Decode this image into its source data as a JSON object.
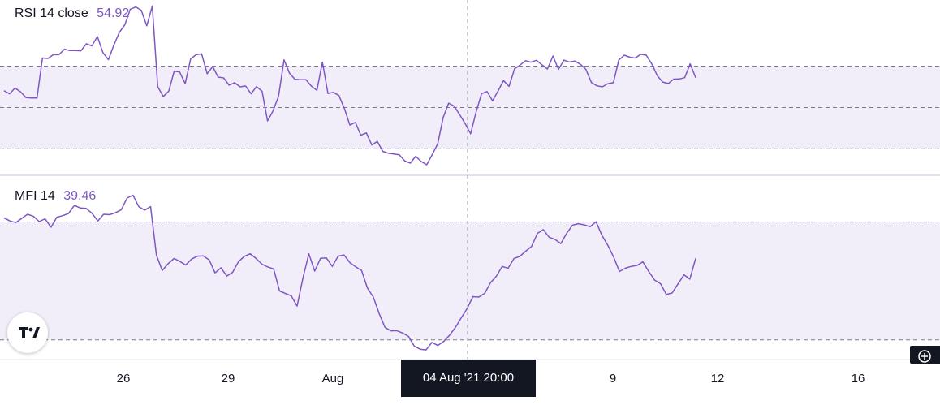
{
  "rsi": {
    "label": "RSI 14 close",
    "value": "54.92",
    "color": "#7e57c2",
    "band_color": "#7e57c2"
  },
  "mfi": {
    "label": "MFI 14",
    "value": "39.46",
    "color": "#7e57c2",
    "band_color": "#7e57c2"
  },
  "x_axis": {
    "ticks": [
      "26",
      "29",
      "Aug",
      "9",
      "12",
      "16"
    ],
    "crosshair_label": "04 Aug '21   20:00"
  },
  "icons": {
    "logo": "tradingview-logo-icon",
    "zoom": "zoom-plus-icon"
  },
  "chart_data": [
    {
      "type": "line",
      "title": "RSI 14 close",
      "series": [
        {
          "name": "RSI 14 close",
          "values": [
            58.1,
            56.6,
            59.4,
            57.6,
            54.8,
            54.6,
            54.6,
            73.9,
            73.7,
            75.6,
            75.5,
            78.2,
            77.5,
            77.5,
            77.4,
            80.8,
            79.8,
            84.3,
            76.6,
            73.1,
            80.1,
            86.3,
            90.0,
            97.5,
            98.6,
            97.0,
            89.5,
            99.0,
            60.1,
            55.3,
            57.9,
            67.6,
            67.1,
            61.5,
            73.5,
            75.5,
            75.9,
            66.3,
            69.8,
            64.7,
            64.3,
            60.8,
            62.0,
            60.0,
            60.4,
            56.6,
            60.1,
            57.9,
            43.5,
            48.3,
            55.3,
            73.0,
            66.6,
            63.6,
            63.4,
            63.4,
            60.3,
            58.3,
            71.9,
            56.8,
            57.3,
            55.8,
            49.6,
            41.5,
            42.8,
            36.6,
            37.7,
            31.9,
            33.6,
            28.8,
            27.9,
            27.5,
            27.1,
            24.2,
            23.1,
            26.4,
            23.9,
            22.3,
            27.2,
            32.4,
            45.2,
            52.1,
            50.6,
            46.6,
            42.2,
            37.3,
            47.8,
            56.7,
            57.7,
            53.2,
            58.0,
            63.0,
            60.2,
            68.7,
            70.5,
            72.6,
            71.9,
            72.8,
            70.6,
            68.6,
            74.9,
            68.4,
            72.9,
            72.0,
            72.4,
            70.9,
            68.4,
            62.1,
            60.5,
            60.0,
            61.5,
            62.0,
            72.9,
            75.3,
            74.3,
            73.9,
            75.7,
            75.3,
            71.1,
            65.4,
            62.3,
            61.6,
            63.7,
            63.8,
            64.4,
            71.1,
            64.4
          ]
        }
      ],
      "reference_levels": [
        70,
        50,
        30
      ],
      "ylim": [
        18,
        100
      ],
      "grid": false
    },
    {
      "type": "line",
      "title": "MFI 14",
      "series": [
        {
          "name": "MFI 14",
          "values": [
            82.1,
            80.5,
            79.7,
            81.8,
            83.9,
            82.9,
            80.2,
            81.6,
            77.3,
            82.4,
            83.2,
            84.3,
            88.4,
            87.1,
            86.9,
            84.4,
            80.5,
            83.9,
            83.7,
            84.7,
            86.2,
            92.2,
            93.6,
            87.7,
            86.0,
            87.8,
            63.1,
            55.3,
            58.8,
            61.4,
            59.9,
            58.1,
            61.1,
            62.6,
            62.7,
            60.7,
            54.1,
            56.7,
            52.5,
            54.4,
            59.8,
            62.5,
            63.8,
            61.4,
            58.5,
            57.1,
            56.1,
            44.9,
            43.6,
            42.4,
            37.2,
            51.5,
            63.8,
            55.0,
            61.5,
            61.7,
            57.4,
            62.6,
            63.2,
            59.3,
            57.2,
            55.3,
            46.3,
            41.8,
            33.4,
            26.4,
            24.6,
            24.7,
            23.5,
            21.8,
            16.8,
            15.3,
            14.9,
            18.7,
            17.2,
            19.2,
            22.3,
            26.3,
            31.2,
            35.9,
            42.0,
            41.8,
            43.7,
            49.1,
            52.4,
            57.4,
            56.4,
            61.4,
            62.5,
            65.1,
            67.5,
            74.2,
            76.1,
            72.2,
            71.1,
            69.0,
            74.3,
            78.4,
            79.1,
            78.5,
            77.6,
            80.1,
            73.2,
            68.2,
            62.2,
            54.8,
            56.5,
            57.4,
            57.9,
            59.7,
            54.8,
            50.4,
            48.6,
            43.1,
            43.9,
            48.5,
            53.1,
            50.9,
            61.5
          ]
        }
      ],
      "reference_levels": [
        80,
        20
      ],
      "ylim": [
        10,
        100
      ],
      "grid": false
    }
  ]
}
